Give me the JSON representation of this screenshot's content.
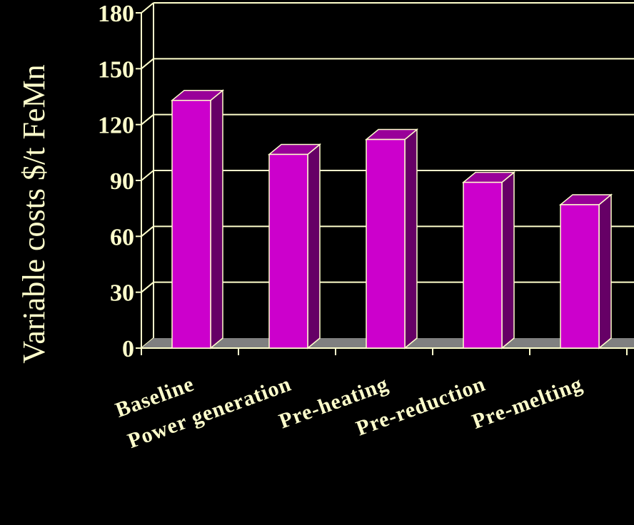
{
  "chart_data": {
    "type": "bar",
    "ylabel": "Variable costs $/t FeMn",
    "xlabel": "",
    "title": "",
    "categories": [
      "Baseline",
      "Power generation",
      "Pre-heating",
      "Pre-reduction",
      "Pre-melting"
    ],
    "values": [
      133,
      104,
      112,
      89,
      77
    ],
    "yticks": [
      0,
      30,
      60,
      90,
      120,
      150,
      180
    ],
    "ylim": [
      0,
      180
    ],
    "grid": true,
    "colors": {
      "bar_front": "#CC00CC",
      "bar_side": "#660066",
      "bar_top": "#990099",
      "floor": "#808080",
      "axis": "#FFFFCC",
      "text": "#FFFFCC",
      "background": "#000000"
    }
  }
}
